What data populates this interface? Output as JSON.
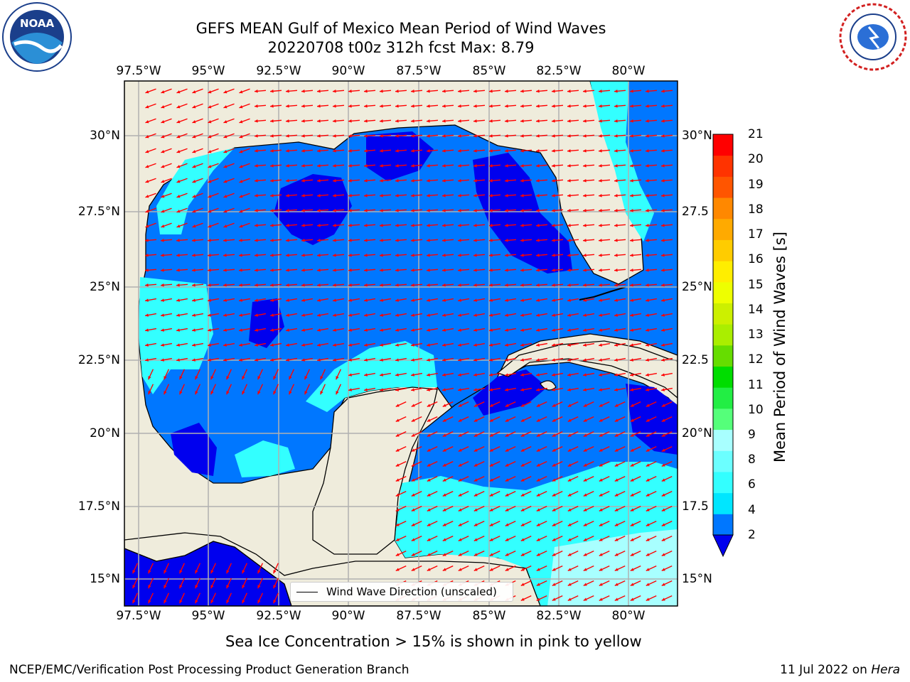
{
  "header": {
    "title_line1": "GEFS MEAN Gulf of Mexico Mean Period of Wind Waves",
    "title_line2": "20220708 t00z 312h fcst   Max: 8.79"
  },
  "logos": {
    "left": "noaa-logo",
    "right": "nws-logo"
  },
  "map": {
    "lon_ticks": [
      "97.5°W",
      "95°W",
      "92.5°W",
      "90°W",
      "87.5°W",
      "85°W",
      "82.5°W",
      "80°W"
    ],
    "lat_ticks_left": [
      "30°N",
      "27.5°N",
      "25°N",
      "22.5°N",
      "20°N",
      "17.5°N",
      "15°N"
    ],
    "lat_ticks_right": [
      "30°N",
      "27.5",
      "25°N",
      "22.5",
      "20°N",
      "17.5",
      "15°N"
    ],
    "legend_label": "Wind Wave Direction (unscaled)",
    "colors": {
      "land": "#efecdc",
      "ocean_2_4": "#0077ff",
      "ocean_low": "#0000ee",
      "ocean_4_6": "#00ffff",
      "ocean_6_8": "#55ffff",
      "ocean_8_9": "#a8ffff",
      "arrow": "#ff0000",
      "grid": "#b0b0b0"
    }
  },
  "colorbar": {
    "label": "Mean Period of Wind Waves [s]",
    "ticks": [
      "21",
      "20",
      "19",
      "18",
      "17",
      "16",
      "15",
      "14",
      "13",
      "12",
      "11",
      "10",
      "9",
      "8",
      "6",
      "4",
      "2"
    ],
    "colors_bottom_to_top": [
      "#0077ff",
      "#00e6ff",
      "#33ffff",
      "#6bffff",
      "#a8ffff",
      "#55ff7a",
      "#22ee44",
      "#00dd00",
      "#66dd00",
      "#aaee00",
      "#ccf000",
      "#eeff00",
      "#ffee00",
      "#ffcc00",
      "#ffaa00",
      "#ff8800",
      "#ff5500",
      "#ff3300",
      "#ff0000"
    ],
    "extend_color": "#0000ee"
  },
  "notes": {
    "sea_ice": "Sea Ice Concentration > 15% is shown in pink to yellow",
    "footer_left": "NCEP/EMC/Verification Post Processing Product Generation Branch",
    "footer_date": "11 Jul 2022 on ",
    "footer_machine": "Hera"
  }
}
